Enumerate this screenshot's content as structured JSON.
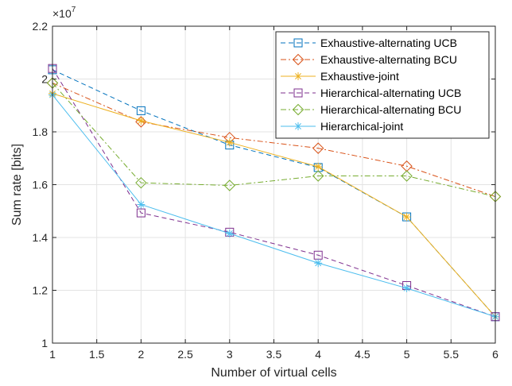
{
  "chart_data": {
    "type": "line",
    "title": "",
    "xlabel": "Number of virtual cells",
    "ylabel": "Sum rate [bits]",
    "y_exponent_label": "×10",
    "y_exponent_power": "7",
    "xlim": [
      1,
      6
    ],
    "ylim": [
      1.0,
      2.2
    ],
    "y_scale_factor": 10000000,
    "grid": true,
    "legend_position": "top-right",
    "x_ticks": [
      1,
      1.5,
      2,
      2.5,
      3,
      3.5,
      4,
      4.5,
      5,
      5.5,
      6
    ],
    "x_tick_labels": [
      "1",
      "1.5",
      "2",
      "2.5",
      "3",
      "3.5",
      "4",
      "4.5",
      "5",
      "5.5",
      "6"
    ],
    "y_ticks": [
      1.0,
      1.2,
      1.4,
      1.6,
      1.8,
      2.0,
      2.2
    ],
    "y_tick_labels": [
      "1",
      "1.2",
      "1.4",
      "1.6",
      "1.8",
      "2",
      "2.2"
    ],
    "x": [
      1,
      2,
      3,
      4,
      5,
      6
    ],
    "series": [
      {
        "name": "Exhaustive-alternating UCB",
        "color": "#0072BD",
        "dash": "dashed",
        "marker": "square",
        "values": [
          2.035,
          1.88,
          1.75,
          1.665,
          1.478,
          1.1
        ]
      },
      {
        "name": "Exhaustive-alternating BCU",
        "color": "#D95319",
        "dash": "dashdot",
        "marker": "diamond",
        "values": [
          1.985,
          1.838,
          1.778,
          1.738,
          1.67,
          1.555
        ]
      },
      {
        "name": "Exhaustive-joint",
        "color": "#EDB120",
        "dash": "solid",
        "marker": "asterisk",
        "values": [
          1.945,
          1.842,
          1.76,
          1.668,
          1.478,
          1.1
        ]
      },
      {
        "name": "Hierarchical-alternating UCB",
        "color": "#7E2F8E",
        "dash": "dashed",
        "marker": "square",
        "values": [
          2.04,
          1.493,
          1.42,
          1.333,
          1.218,
          1.1
        ]
      },
      {
        "name": "Hierarchical-alternating BCU",
        "color": "#77AC30",
        "dash": "dashdot",
        "marker": "diamond",
        "values": [
          1.985,
          1.607,
          1.597,
          1.633,
          1.633,
          1.555
        ]
      },
      {
        "name": "Hierarchical-joint",
        "color": "#4DBEEE",
        "dash": "solid",
        "marker": "asterisk",
        "values": [
          1.94,
          1.525,
          1.415,
          1.303,
          1.208,
          1.1
        ]
      }
    ]
  }
}
